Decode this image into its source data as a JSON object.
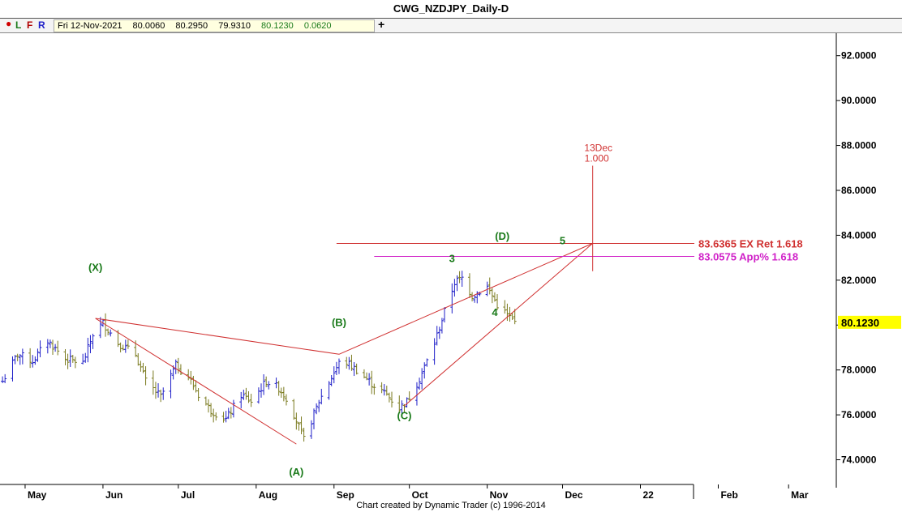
{
  "title": "CWG_NZDJPY_Daily-D",
  "toolbar": {
    "buttons": [
      "L",
      "F",
      "R"
    ],
    "ohlc": {
      "date": "Fri 12-Nov-2021",
      "open": "80.0060",
      "high": "80.2950",
      "low": "79.9310",
      "close": "80.1230",
      "change": "0.0620"
    },
    "add_label": "+"
  },
  "footer": "Chart created by Dynamic Trader  (c) 1996-2014",
  "colors": {
    "up_bar": "#1f1fc8",
    "down_bar": "#7a7a1e",
    "pattern_line": "#d03030",
    "app_line": "#d020c8",
    "wave_label": "#1a7a1a",
    "price_highlight": "#ffff00"
  },
  "chart_data": {
    "type": "ohlc",
    "symbol": "NZDJPY",
    "ylim": [
      72.9,
      93.0
    ],
    "x_range": [
      "2021-04-21",
      "2022-03-20"
    ],
    "y_ticks": [
      "92.0000",
      "90.0000",
      "88.0000",
      "86.0000",
      "84.0000",
      "82.0000",
      "80.0000",
      "78.0000",
      "76.0000",
      "74.0000"
    ],
    "x_ticks": [
      {
        "label": "May",
        "date": "2021-05-01"
      },
      {
        "label": "Jun",
        "date": "2021-06-01"
      },
      {
        "label": "Jul",
        "date": "2021-07-01"
      },
      {
        "label": "Aug",
        "date": "2021-08-01"
      },
      {
        "label": "Sep",
        "date": "2021-09-01"
      },
      {
        "label": "Oct",
        "date": "2021-10-01"
      },
      {
        "label": "Nov",
        "date": "2021-11-01"
      },
      {
        "label": "Dec",
        "date": "2021-12-01"
      },
      {
        "label": "22",
        "date": "2022-01-01"
      },
      {
        "label": "Feb",
        "date": "2022-02-01"
      },
      {
        "label": "Mar",
        "date": "2022-03-01"
      }
    ],
    "close_path": [
      [
        "2021-04-22",
        77.5
      ],
      [
        "2021-04-28",
        78.7
      ],
      [
        "2021-05-04",
        78.4
      ],
      [
        "2021-05-10",
        79.3
      ],
      [
        "2021-05-17",
        78.5
      ],
      [
        "2021-05-24",
        78.3
      ],
      [
        "2021-05-28",
        79.6
      ],
      [
        "2021-06-01",
        80.1
      ],
      [
        "2021-06-07",
        79.2
      ],
      [
        "2021-06-14",
        78.7
      ],
      [
        "2021-06-18",
        77.5
      ],
      [
        "2021-06-24",
        76.8
      ],
      [
        "2021-06-30",
        78.2
      ],
      [
        "2021-07-05",
        77.7
      ],
      [
        "2021-07-09",
        76.9
      ],
      [
        "2021-07-14",
        76.2
      ],
      [
        "2021-07-20",
        75.8
      ],
      [
        "2021-07-26",
        76.9
      ],
      [
        "2021-07-30",
        76.6
      ],
      [
        "2021-08-05",
        77.5
      ],
      [
        "2021-08-10",
        77.2
      ],
      [
        "2021-08-14",
        76.6
      ],
      [
        "2021-08-20",
        74.9
      ],
      [
        "2021-08-26",
        76.6
      ],
      [
        "2021-09-01",
        77.9
      ],
      [
        "2021-09-04",
        78.5
      ],
      [
        "2021-09-10",
        78.0
      ],
      [
        "2021-09-16",
        77.4
      ],
      [
        "2021-09-22",
        76.9
      ],
      [
        "2021-09-27",
        76.3
      ],
      [
        "2021-09-30",
        76.6
      ],
      [
        "2021-10-05",
        77.6
      ],
      [
        "2021-10-11",
        79.2
      ],
      [
        "2021-10-15",
        80.6
      ],
      [
        "2021-10-19",
        81.9
      ],
      [
        "2021-10-22",
        82.1
      ],
      [
        "2021-10-26",
        81.3
      ],
      [
        "2021-11-01",
        81.7
      ],
      [
        "2021-11-05",
        80.9
      ],
      [
        "2021-11-12",
        80.12
      ]
    ],
    "wave_labels": [
      {
        "label": "(X)",
        "date": "2021-05-29",
        "price": 82.4
      },
      {
        "label": "(A)",
        "date": "2021-08-17",
        "price": 73.3
      },
      {
        "label": "(B)",
        "date": "2021-09-03",
        "price": 79.95
      },
      {
        "label": "(C)",
        "date": "2021-09-29",
        "price": 75.8
      },
      {
        "label": "3",
        "date": "2021-10-18",
        "price": 82.8
      },
      {
        "label": "4",
        "date": "2021-11-04",
        "price": 80.4
      },
      {
        "label": "(D)",
        "date": "2021-11-07",
        "price": 83.8
      },
      {
        "label": "5",
        "date": "2021-12-01",
        "price": 83.6
      }
    ],
    "pattern_lines": [
      {
        "from": [
          "2021-05-29",
          80.3
        ],
        "to": [
          "2021-09-03",
          78.7
        ]
      },
      {
        "from": [
          "2021-05-29",
          80.3
        ],
        "to": [
          "2021-08-17",
          74.7
        ]
      },
      {
        "from": [
          "2021-09-03",
          78.7
        ],
        "to": [
          "2021-12-13",
          83.64
        ]
      },
      {
        "from": [
          "2021-09-29",
          76.4
        ],
        "to": [
          "2021-12-13",
          83.64
        ]
      }
    ],
    "time_target": {
      "date": "2021-12-13",
      "label_date": "13Dec",
      "label_ratio": "1.000",
      "top": 87.1,
      "bottom": 82.4
    },
    "levels": [
      {
        "price": 83.6365,
        "label": "83.6365 EX Ret 1.618",
        "from": "2021-09-02",
        "color_key": "pattern_line"
      },
      {
        "price": 83.0575,
        "label": "83.0575 App% 1.618",
        "from": "2021-09-17",
        "color_key": "app_line"
      }
    ],
    "last_price": {
      "value": 80.123,
      "label": "80.1230"
    }
  }
}
